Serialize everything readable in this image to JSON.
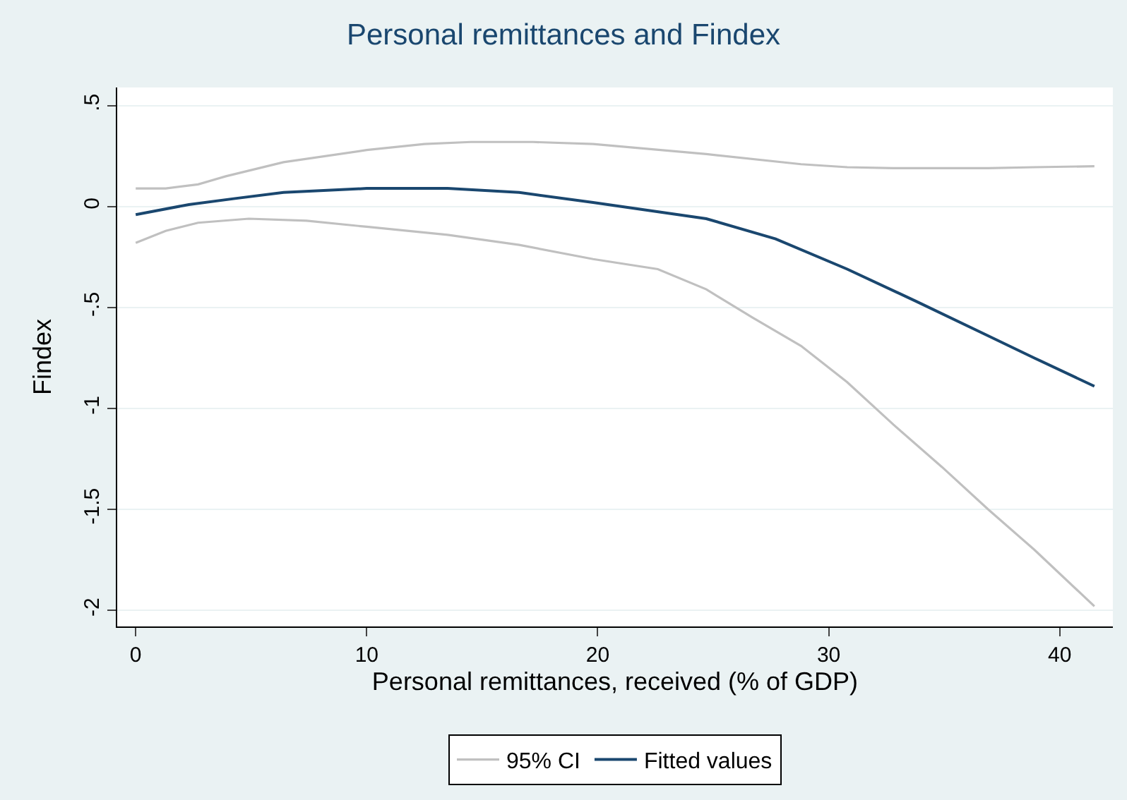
{
  "chart_data": {
    "type": "line",
    "title": "Personal remittances and Findex",
    "xlabel": "Personal remittances, received (% of GDP)",
    "ylabel": "Findex",
    "series": [
      {
        "name": "95% CI",
        "color": "#c0c0c0",
        "x": [
          0,
          1.3,
          2.7,
          4.9,
          7.4,
          10,
          13.5,
          16.6,
          19.8,
          22.6,
          24.7,
          26.7,
          28.8,
          30.8,
          32.8,
          34.9,
          36.9,
          38.9,
          41.5
        ],
        "values": [
          -0.18,
          -0.12,
          -0.08,
          -0.06,
          -0.07,
          -0.1,
          -0.14,
          -0.19,
          -0.26,
          -0.31,
          -0.41,
          -0.55,
          -0.69,
          -0.87,
          -1.08,
          -1.29,
          -1.5,
          -1.7,
          -1.98
        ]
      },
      {
        "color": "#c0c0c0",
        "x": [
          0,
          1.3,
          2.7,
          3.9,
          6.4,
          10,
          12.5,
          14.5,
          17.2,
          19.8,
          24.7,
          28.8,
          30.8,
          32.8,
          36.9,
          38.9,
          41.5
        ],
        "values": [
          0.09,
          0.09,
          0.11,
          0.15,
          0.22,
          0.28,
          0.31,
          0.32,
          0.32,
          0.31,
          0.26,
          0.21,
          0.195,
          0.19,
          0.19,
          0.195,
          0.2
        ]
      },
      {
        "name": "Fitted values",
        "color": "#1a476f",
        "x": [
          0,
          2.3,
          4.3,
          6.4,
          10,
          13.5,
          16.6,
          19.8,
          24.7,
          27.7,
          30.8,
          33.8,
          36.9,
          38.9,
          41.5
        ],
        "values": [
          -0.04,
          0.01,
          0.04,
          0.07,
          0.09,
          0.09,
          0.07,
          0.02,
          -0.06,
          -0.16,
          -0.31,
          -0.47,
          -0.64,
          -0.75,
          -0.89
        ]
      }
    ],
    "xlim": [
      -0.8,
      42.3
    ],
    "xticks": [
      0,
      10,
      20,
      30,
      40
    ],
    "ylim": [
      -2.08,
      0.59
    ],
    "yticks": [
      {
        "value": 0.5,
        "label": ".5"
      },
      0,
      {
        "value": -0.5,
        "label": "-.5"
      },
      -1,
      {
        "value": -1.5,
        "label": "-1.5"
      },
      -2
    ],
    "grid": "y",
    "legend": "bottom",
    "marker": "none",
    "line_style": "solid"
  }
}
